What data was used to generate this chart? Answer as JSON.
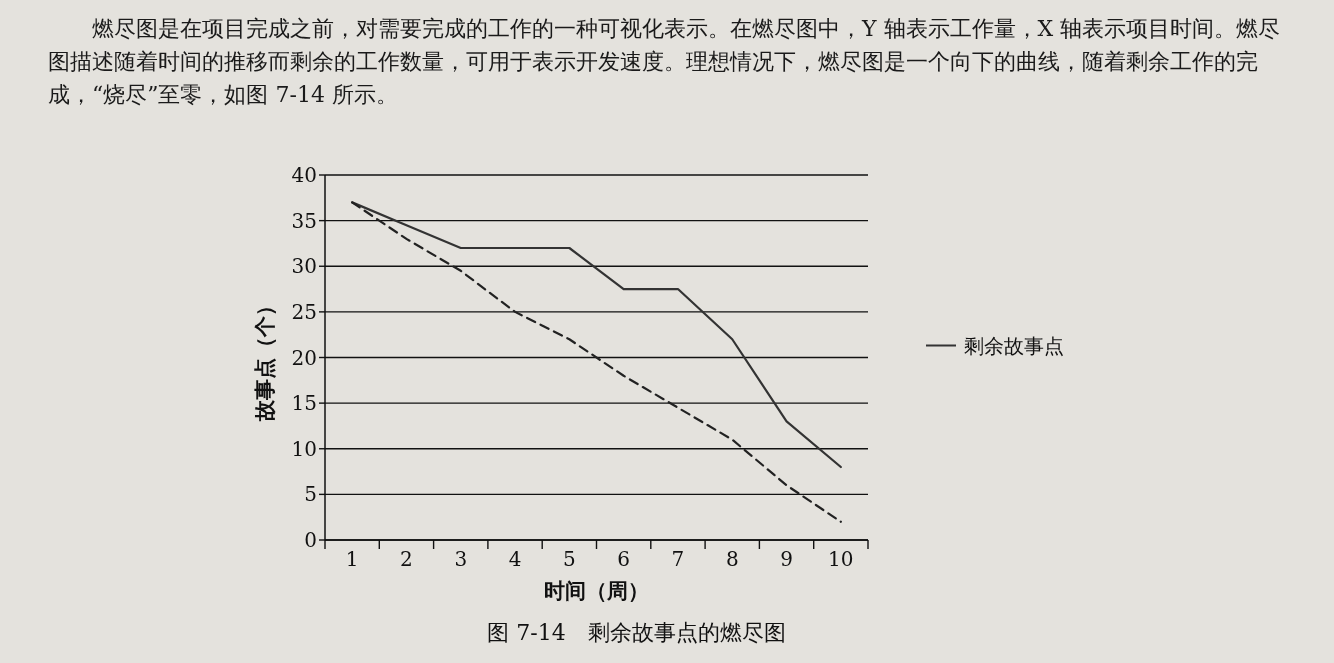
{
  "chart_data": {
    "type": "line",
    "title": "图 7-14　剩余故事点的燃尽图",
    "xlabel": "时间（周）",
    "ylabel": "故事点（个）",
    "annotations": [
      "燃尽图是在项目完成之前，对需要完成的工作的一种可视化表示。在燃尽图中，Y 轴表示工作量，X 轴表示项目时间。燃尽图描述随着时间的推移而剩余的工作数量，可用于表示开发速度。理想情况下，燃尽图是一个向下的曲线，随着剩余工作的完成，“烧尽”至零，如图 7-14 所示。"
    ],
    "categories": [
      "1",
      "2",
      "3",
      "4",
      "5",
      "6",
      "7",
      "8",
      "9",
      "10"
    ],
    "series": [
      {
        "name": "剩余故事点",
        "color": "#333333",
        "line_style": "solid",
        "values": [
          37,
          34.5,
          32,
          32,
          32,
          27.5,
          27.5,
          22,
          13,
          8
        ]
      },
      {
        "color": "#222222",
        "line_style": "dashed",
        "values": [
          37,
          33,
          29.5,
          25,
          22,
          18,
          14.5,
          11,
          6,
          2
        ]
      }
    ],
    "ylim": [
      0,
      40
    ],
    "yticks": [
      0,
      5,
      10,
      15,
      20,
      25,
      30,
      35,
      40
    ],
    "grid": "y",
    "legend": "right",
    "marker": "none"
  }
}
